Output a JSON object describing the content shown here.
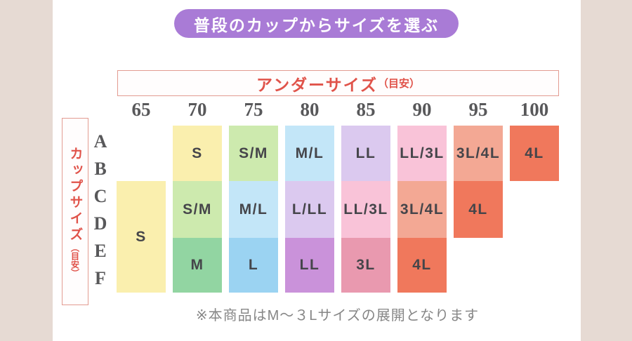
{
  "badge": {
    "label": "普段のカップからサイズを選ぶ"
  },
  "under_size_header": {
    "title": "アンダーサイズ",
    "suffix": "（目安）"
  },
  "cup_size_header": {
    "title": "カップサイズ",
    "suffix": "（目安）"
  },
  "note": "※本商品はM～３Lサイズの展開となります",
  "colors": {
    "page_bg": "#e6dad3",
    "card_bg": "#ffffff",
    "badge_bg": "#a97bd6",
    "badge_text": "#ffffff",
    "accent_red": "#e0534a",
    "accent_red_border": "#e39b91",
    "label_gray": "#58585a",
    "cell_text": "#45454a",
    "note_gray": "#868686",
    "cell_colors": {
      "yellow": "#faefae",
      "lightGreen": "#cdeaae",
      "green": "#92d5a2",
      "lightBlue": "#c3e6f8",
      "blue": "#9bd3f2",
      "lavender": "#dbc9ef",
      "purple": "#ca92da",
      "pink": "#f9c3d8",
      "rose": "#e999af",
      "salmon": "#f3a894",
      "coral": "#f0785c"
    }
  },
  "chart_data": {
    "type": "table",
    "title": "普段のカップからサイズを選ぶ",
    "x_header": "アンダーサイズ（目安）",
    "y_header": "カップサイズ（目安）",
    "columns": [
      "65",
      "70",
      "75",
      "80",
      "85",
      "90",
      "95",
      "100"
    ],
    "rows": [
      "A",
      "B",
      "C",
      "D",
      "E",
      "F"
    ],
    "matrix": [
      [
        null,
        "S",
        "S/M",
        "M/L",
        "LL",
        "LL/3L",
        "3L/4L",
        "4L"
      ],
      [
        null,
        "S",
        "S/M",
        "M/L",
        "LL",
        "LL/3L",
        "3L/4L",
        "4L"
      ],
      [
        "S",
        "S/M",
        "M/L",
        "L/LL",
        "LL/3L",
        "3L/4L",
        "4L",
        null
      ],
      [
        "S",
        "S/M",
        "M/L",
        "L/LL",
        "LL/3L",
        "3L/4L",
        "4L",
        null
      ],
      [
        "S",
        "M",
        "L",
        "LL",
        "3L",
        "4L",
        null,
        null
      ],
      [
        "S",
        "M",
        "L",
        "LL",
        "3L",
        "4L",
        null,
        null
      ]
    ],
    "cells": [
      {
        "column": "65",
        "rows": [
          "C",
          "D",
          "E",
          "F"
        ],
        "label": "S",
        "color": "yellow"
      },
      {
        "column": "70",
        "rows": [
          "A",
          "B"
        ],
        "label": "S",
        "color": "yellow"
      },
      {
        "column": "70",
        "rows": [
          "C",
          "D"
        ],
        "label": "S/M",
        "color": "lightGreen"
      },
      {
        "column": "70",
        "rows": [
          "E",
          "F"
        ],
        "label": "M",
        "color": "green"
      },
      {
        "column": "75",
        "rows": [
          "A",
          "B"
        ],
        "label": "S/M",
        "color": "lightGreen"
      },
      {
        "column": "75",
        "rows": [
          "C",
          "D"
        ],
        "label": "M/L",
        "color": "lightBlue"
      },
      {
        "column": "75",
        "rows": [
          "E",
          "F"
        ],
        "label": "L",
        "color": "blue"
      },
      {
        "column": "80",
        "rows": [
          "A",
          "B"
        ],
        "label": "M/L",
        "color": "lightBlue"
      },
      {
        "column": "80",
        "rows": [
          "C",
          "D"
        ],
        "label": "L/LL",
        "color": "lavender"
      },
      {
        "column": "80",
        "rows": [
          "E",
          "F"
        ],
        "label": "LL",
        "color": "purple"
      },
      {
        "column": "85",
        "rows": [
          "A",
          "B"
        ],
        "label": "LL",
        "color": "lavender"
      },
      {
        "column": "85",
        "rows": [
          "C",
          "D"
        ],
        "label": "LL/3L",
        "color": "pink"
      },
      {
        "column": "85",
        "rows": [
          "E",
          "F"
        ],
        "label": "3L",
        "color": "rose"
      },
      {
        "column": "90",
        "rows": [
          "A",
          "B"
        ],
        "label": "LL/3L",
        "color": "pink"
      },
      {
        "column": "90",
        "rows": [
          "C",
          "D"
        ],
        "label": "3L/4L",
        "color": "salmon"
      },
      {
        "column": "90",
        "rows": [
          "E",
          "F"
        ],
        "label": "4L",
        "color": "coral"
      },
      {
        "column": "95",
        "rows": [
          "A",
          "B"
        ],
        "label": "3L/4L",
        "color": "salmon"
      },
      {
        "column": "95",
        "rows": [
          "C",
          "D"
        ],
        "label": "4L",
        "color": "coral"
      },
      {
        "column": "100",
        "rows": [
          "A",
          "B"
        ],
        "label": "4L",
        "color": "coral"
      },
      {
        "note": "※本商品はM～３Lサイズの展開となります"
      }
    ]
  }
}
